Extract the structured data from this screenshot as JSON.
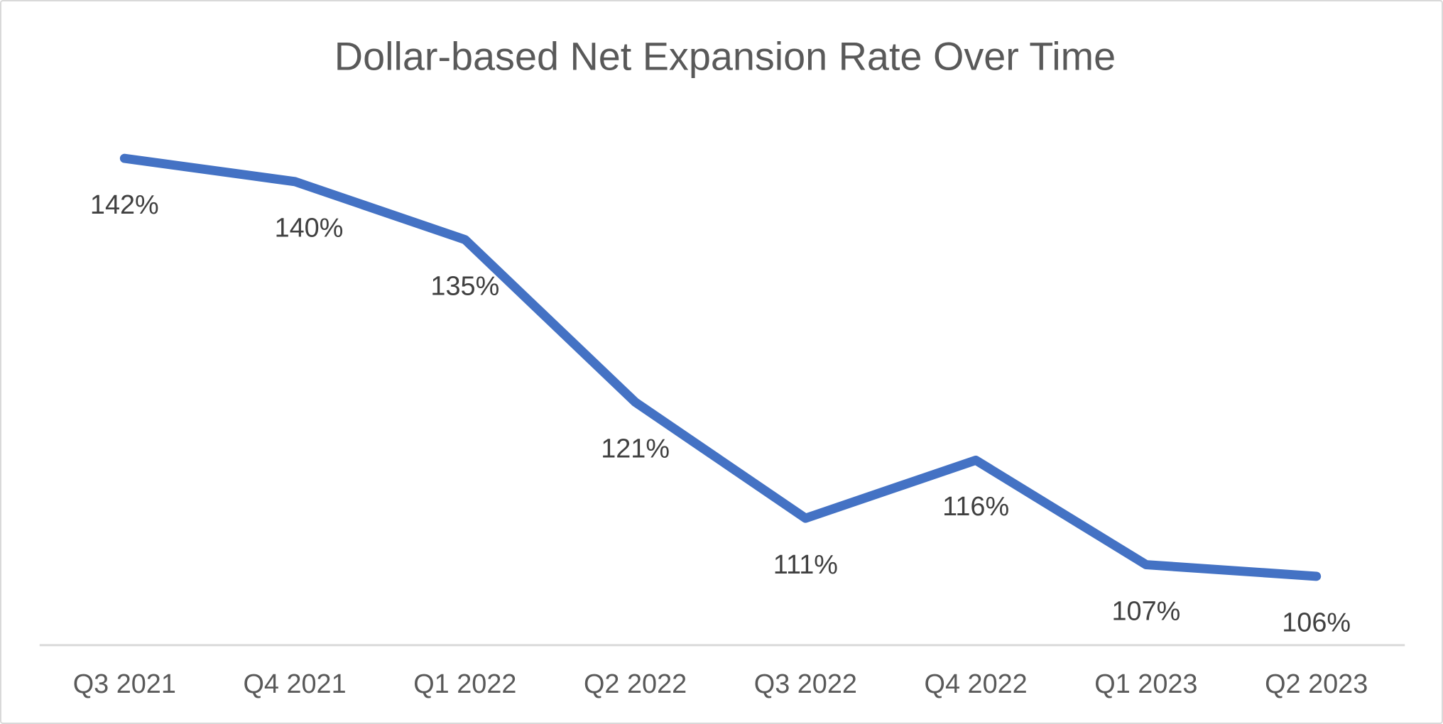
{
  "chart_data": {
    "type": "line",
    "title": "Dollar-based Net Expansion Rate Over Time",
    "categories": [
      "Q3 2021",
      "Q4 2021",
      "Q1 2022",
      "Q2 2022",
      "Q3 2022",
      "Q4 2022",
      "Q1 2023",
      "Q2 2023"
    ],
    "values": [
      142,
      140,
      135,
      121,
      111,
      116,
      107,
      106
    ],
    "data_labels": [
      "142%",
      "140%",
      "135%",
      "121%",
      "111%",
      "116%",
      "107%",
      "106%"
    ],
    "unit": "%",
    "xlabel": "",
    "ylabel": "",
    "grid": false,
    "legend": false,
    "y_axis_visible": false,
    "data_label_position": "below",
    "colors": {
      "line": "#4472C4",
      "title": "#595959",
      "data_label": "#404040",
      "axis_label": "#595959",
      "axis_line": "#D9D9D9",
      "background": "#FFFFFF",
      "border": "#D9D9D9"
    }
  }
}
